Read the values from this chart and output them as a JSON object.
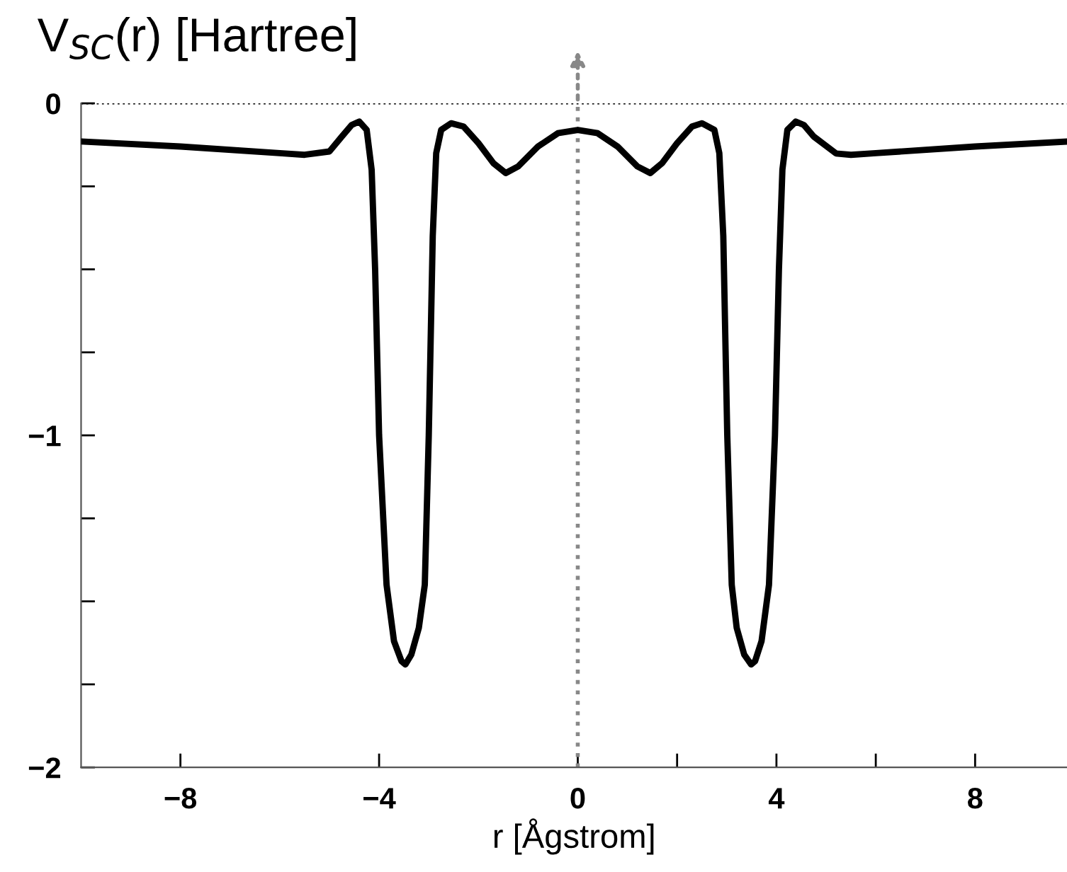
{
  "chart_data": {
    "type": "line",
    "title": "V$_{SC}$(r) [Hartree]",
    "xlabel": "r [Ågstrom]",
    "xlim": [
      -10,
      9.85
    ],
    "ylim": [
      -2,
      0
    ],
    "xticks": [
      -8,
      -4,
      0,
      {
        "value": 2,
        "label": null
      },
      4,
      {
        "value": 6,
        "label": null
      },
      8
    ],
    "yticks": [
      -2,
      {
        "value": -1.75,
        "label": null
      },
      {
        "value": -1.5,
        "label": null
      },
      {
        "value": -1.25,
        "label": null
      },
      -1,
      {
        "value": -0.75,
        "label": null
      },
      {
        "value": -0.5,
        "label": null
      },
      {
        "value": -0.25,
        "label": null
      },
      0
    ],
    "marker": "none",
    "line_style": "solid",
    "ref_lines": [
      {
        "axis": "y",
        "value": 0,
        "color": "#000000",
        "line_style": "dotted"
      },
      {
        "axis": "x",
        "value": 0,
        "color": "#888888",
        "line_style": "dotted"
      }
    ],
    "series": [
      {
        "color": "#000000",
        "x": [
          -10,
          -8,
          -6,
          -5.5,
          -5.0,
          -4.75,
          -4.55,
          -4.4,
          -4.25,
          -4.15,
          -4.08,
          -4.0,
          -3.85,
          -3.7,
          -3.55,
          -3.47,
          -3.35,
          -3.2,
          -3.08,
          -3.0,
          -2.92,
          -2.85,
          -2.75,
          -2.55,
          -2.3,
          -2.0,
          -1.7,
          -1.45,
          -1.2,
          -0.8,
          -0.4,
          0,
          0.4,
          0.8,
          1.2,
          1.46,
          1.7,
          2.0,
          2.3,
          2.5,
          2.75,
          2.85,
          2.93,
          3.01,
          3.1,
          3.2,
          3.35,
          3.49,
          3.57,
          3.7,
          3.85,
          3.97,
          4.05,
          4.12,
          4.22,
          4.39,
          4.55,
          4.75,
          5.2,
          5.5,
          6,
          8,
          9.85
        ],
        "values": [
          -0.115,
          -0.13,
          -0.15,
          -0.155,
          -0.145,
          -0.1,
          -0.065,
          -0.055,
          -0.08,
          -0.2,
          -0.5,
          -1.0,
          -1.45,
          -1.62,
          -1.68,
          -1.69,
          -1.66,
          -1.58,
          -1.45,
          -1.0,
          -0.4,
          -0.15,
          -0.08,
          -0.06,
          -0.07,
          -0.12,
          -0.18,
          -0.21,
          -0.19,
          -0.13,
          -0.09,
          -0.08,
          -0.09,
          -0.13,
          -0.19,
          -0.21,
          -0.18,
          -0.12,
          -0.07,
          -0.06,
          -0.08,
          -0.15,
          -0.4,
          -1.0,
          -1.45,
          -1.58,
          -1.66,
          -1.69,
          -1.68,
          -1.62,
          -1.45,
          -1.0,
          -0.5,
          -0.2,
          -0.08,
          -0.055,
          -0.065,
          -0.1,
          -0.151,
          -0.155,
          -0.15,
          -0.13,
          -0.115
        ]
      }
    ]
  }
}
